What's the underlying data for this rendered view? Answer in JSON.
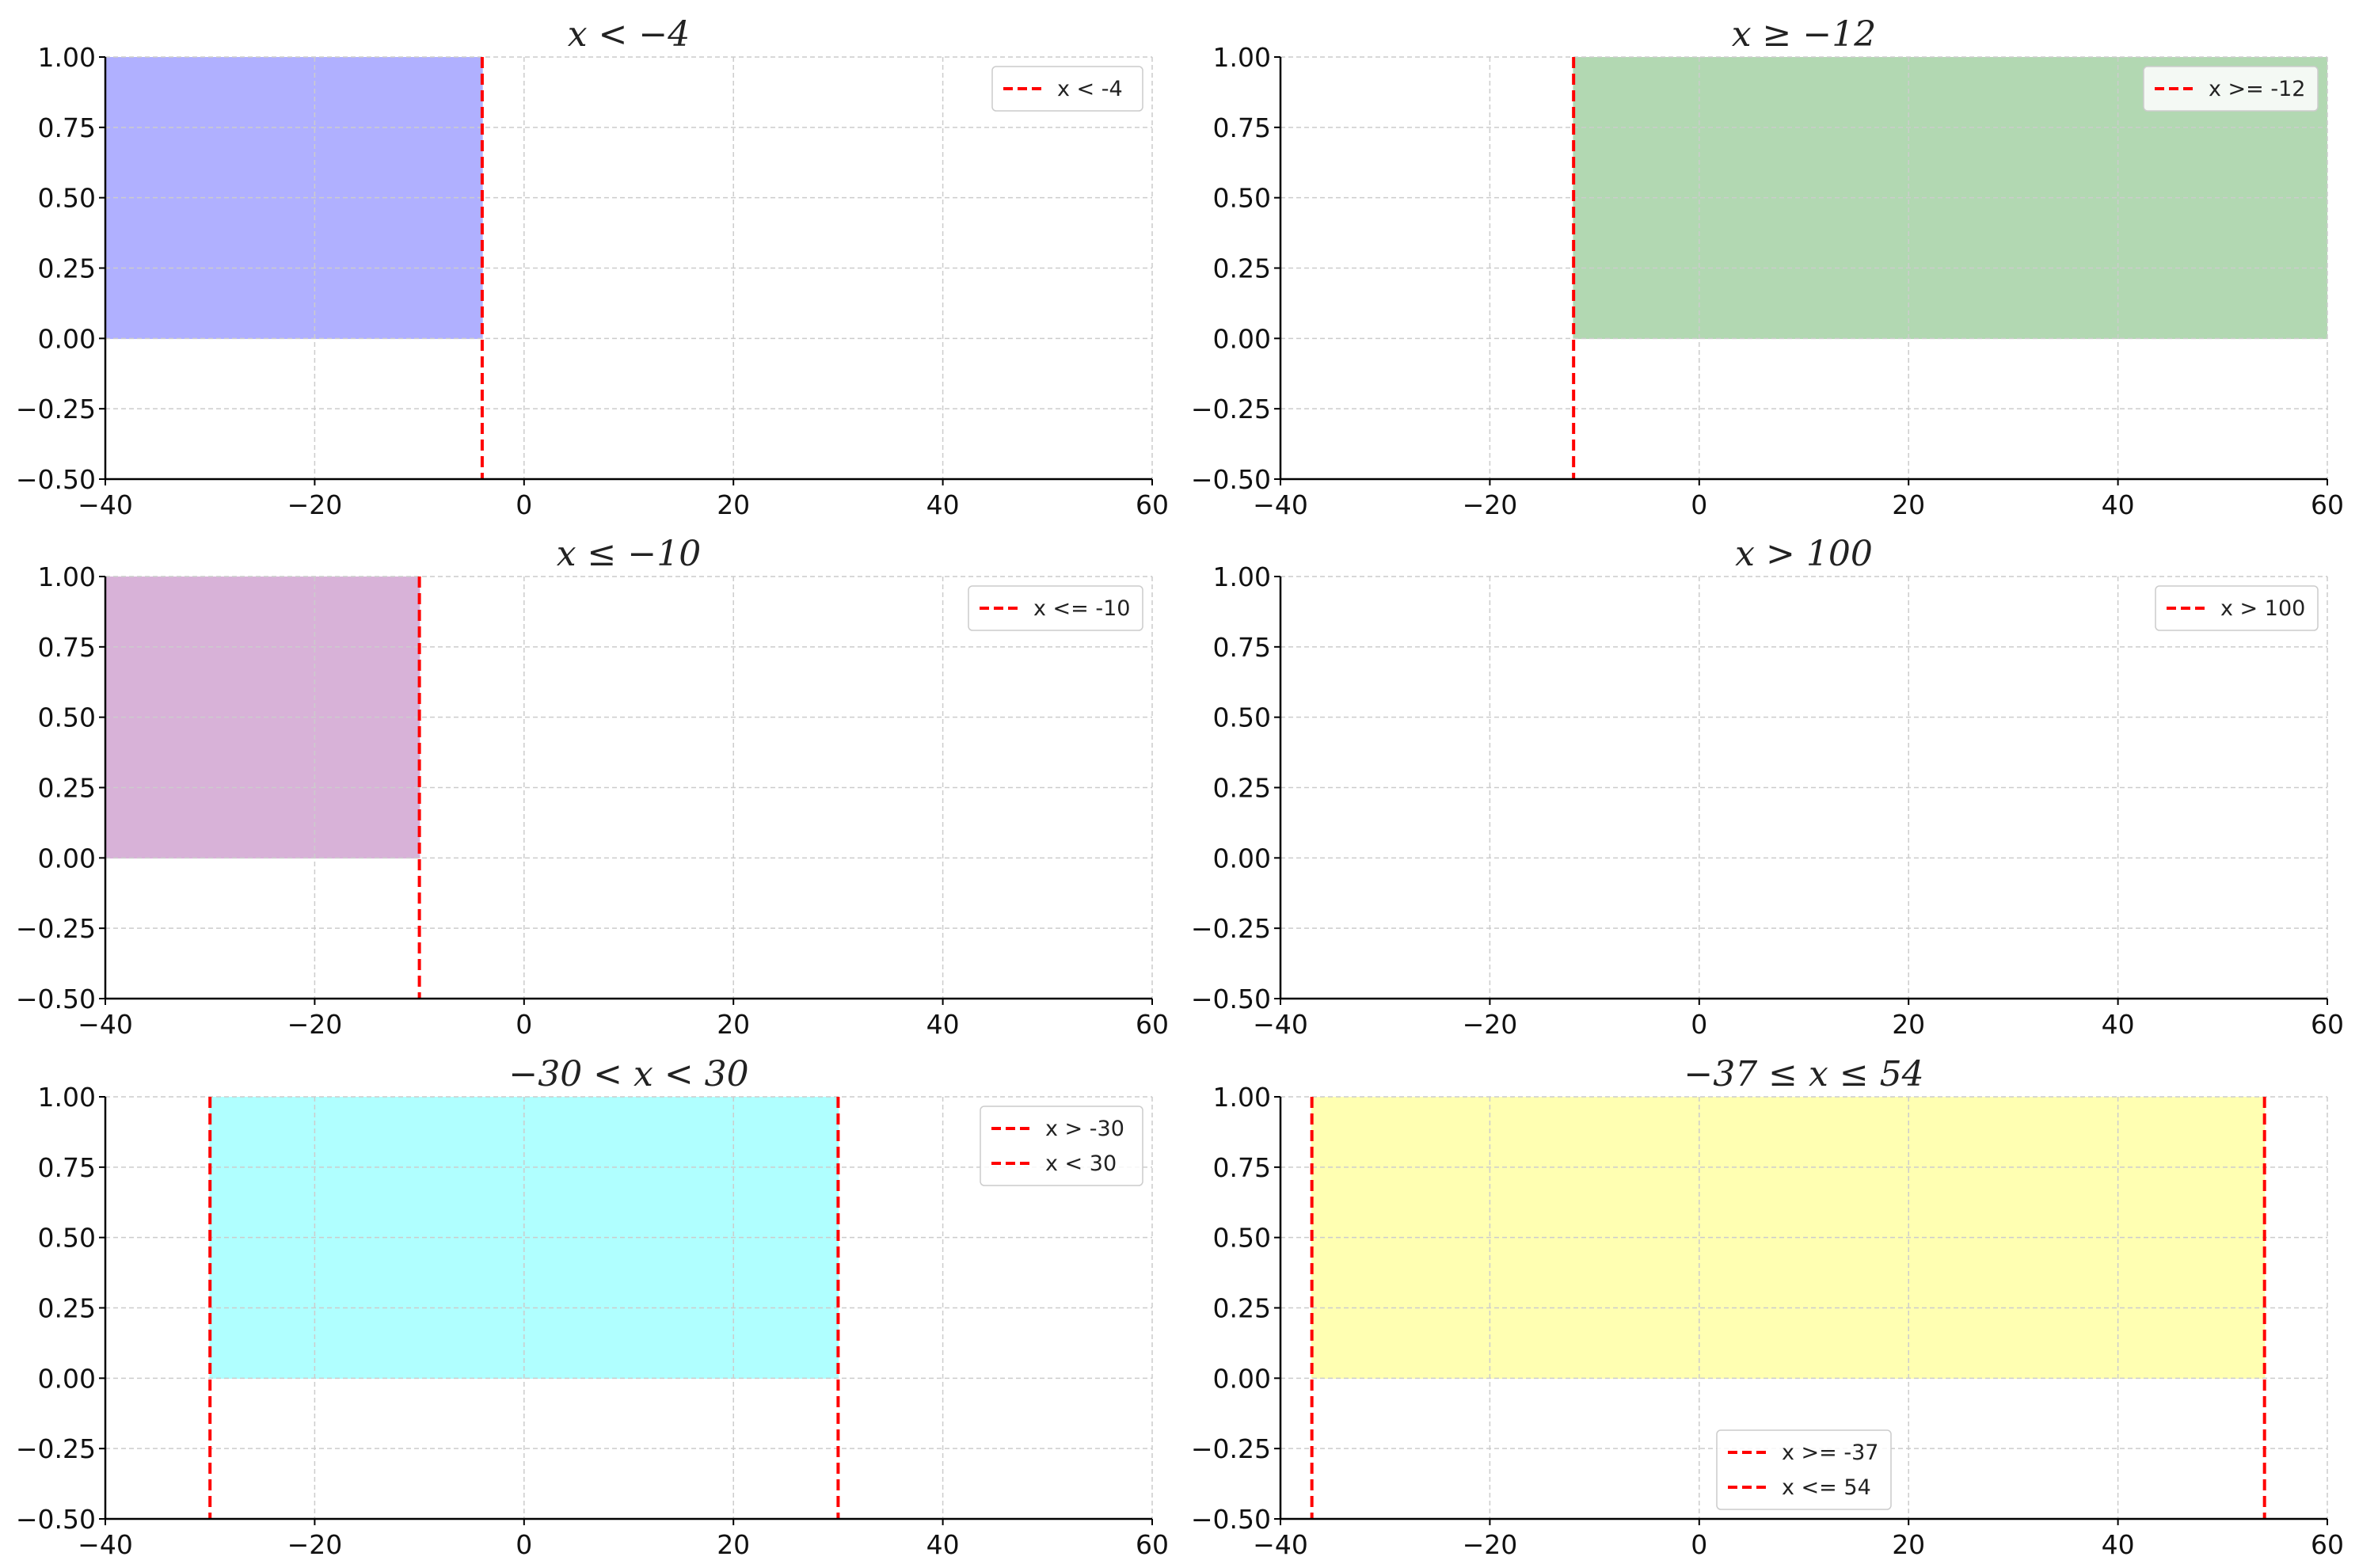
{
  "colors": {
    "boundary_line": "#ff0000",
    "grid": "#cccccc",
    "axis": "#000000",
    "legend_border": "#cccccc"
  },
  "chart_data": [
    {
      "type": "area",
      "title": "x < −4",
      "xlim": [
        -40,
        60
      ],
      "ylim": [
        -0.5,
        1.0
      ],
      "xticks": [
        -40,
        -20,
        0,
        20,
        40,
        60
      ],
      "yticks": [
        -0.5,
        -0.25,
        0.0,
        0.25,
        0.5,
        0.75,
        1.0
      ],
      "xtick_labels": [
        "−40",
        "−20",
        "0",
        "20",
        "40",
        "60"
      ],
      "ytick_labels": [
        "−0.50",
        "−0.25",
        "0.00",
        "0.25",
        "0.50",
        "0.75",
        "1.00"
      ],
      "grid": true,
      "fill": {
        "x_from": -40,
        "x_to": -4,
        "y_from": 0,
        "y_to": 1,
        "color": "#b0b0ff"
      },
      "boundaries": [
        {
          "x": -4,
          "label": "x < -4"
        }
      ],
      "legend_position": "upper right"
    },
    {
      "type": "area",
      "title": "x ≥ −12",
      "xlim": [
        -40,
        60
      ],
      "ylim": [
        -0.5,
        1.0
      ],
      "xticks": [
        -40,
        -20,
        0,
        20,
        40,
        60
      ],
      "yticks": [
        -0.5,
        -0.25,
        0.0,
        0.25,
        0.5,
        0.75,
        1.0
      ],
      "xtick_labels": [
        "−40",
        "−20",
        "0",
        "20",
        "40",
        "60"
      ],
      "ytick_labels": [
        "−0.50",
        "−0.25",
        "0.00",
        "0.25",
        "0.50",
        "0.75",
        "1.00"
      ],
      "grid": true,
      "fill": {
        "x_from": -12,
        "x_to": 60,
        "y_from": 0,
        "y_to": 1,
        "color": "#b2d8b2"
      },
      "boundaries": [
        {
          "x": -12,
          "label": "x >= -12"
        }
      ],
      "legend_position": "upper right"
    },
    {
      "type": "area",
      "title": "x ≤ −10",
      "xlim": [
        -40,
        60
      ],
      "ylim": [
        -0.5,
        1.0
      ],
      "xticks": [
        -40,
        -20,
        0,
        20,
        40,
        60
      ],
      "yticks": [
        -0.5,
        -0.25,
        0.0,
        0.25,
        0.5,
        0.75,
        1.0
      ],
      "xtick_labels": [
        "−40",
        "−20",
        "0",
        "20",
        "40",
        "60"
      ],
      "ytick_labels": [
        "−0.50",
        "−0.25",
        "0.00",
        "0.25",
        "0.50",
        "0.75",
        "1.00"
      ],
      "grid": true,
      "fill": {
        "x_from": -40,
        "x_to": -10,
        "y_from": 0,
        "y_to": 1,
        "color": "#d8b2d8"
      },
      "boundaries": [
        {
          "x": -10,
          "label": "x <= -10"
        }
      ],
      "legend_position": "upper right"
    },
    {
      "type": "area",
      "title": "x > 100",
      "xlim": [
        -40,
        60
      ],
      "ylim": [
        -0.5,
        1.0
      ],
      "xticks": [
        -40,
        -20,
        0,
        20,
        40,
        60
      ],
      "yticks": [
        -0.5,
        -0.25,
        0.0,
        0.25,
        0.5,
        0.75,
        1.0
      ],
      "xtick_labels": [
        "−40",
        "−20",
        "0",
        "20",
        "40",
        "60"
      ],
      "ytick_labels": [
        "−0.50",
        "−0.25",
        "0.00",
        "0.25",
        "0.50",
        "0.75",
        "1.00"
      ],
      "grid": true,
      "fill": null,
      "boundaries": [
        {
          "x": 100,
          "label": "x > 100"
        }
      ],
      "legend_position": "upper right"
    },
    {
      "type": "area",
      "title": "−30 < x < 30",
      "xlim": [
        -40,
        60
      ],
      "ylim": [
        -0.5,
        1.0
      ],
      "xticks": [
        -40,
        -20,
        0,
        20,
        40,
        60
      ],
      "yticks": [
        -0.5,
        -0.25,
        0.0,
        0.25,
        0.5,
        0.75,
        1.0
      ],
      "xtick_labels": [
        "−40",
        "−20",
        "0",
        "20",
        "40",
        "60"
      ],
      "ytick_labels": [
        "−0.50",
        "−0.25",
        "0.00",
        "0.25",
        "0.50",
        "0.75",
        "1.00"
      ],
      "grid": true,
      "fill": {
        "x_from": -30,
        "x_to": 30,
        "y_from": 0,
        "y_to": 1,
        "color": "#b0ffff"
      },
      "boundaries": [
        {
          "x": -30,
          "label": "x > -30"
        },
        {
          "x": 30,
          "label": "x < 30"
        }
      ],
      "legend_position": "upper right"
    },
    {
      "type": "area",
      "title": "−37 ≤ x ≤ 54",
      "xlim": [
        -40,
        60
      ],
      "ylim": [
        -0.5,
        1.0
      ],
      "xticks": [
        -40,
        -20,
        0,
        20,
        40,
        60
      ],
      "yticks": [
        -0.5,
        -0.25,
        0.0,
        0.25,
        0.5,
        0.75,
        1.0
      ],
      "xtick_labels": [
        "−40",
        "−20",
        "0",
        "20",
        "40",
        "60"
      ],
      "ytick_labels": [
        "−0.50",
        "−0.25",
        "0.00",
        "0.25",
        "0.50",
        "0.75",
        "1.00"
      ],
      "grid": true,
      "fill": {
        "x_from": -37,
        "x_to": 54,
        "y_from": 0,
        "y_to": 1,
        "color": "#ffffb2"
      },
      "boundaries": [
        {
          "x": -37,
          "label": "x >= -37"
        },
        {
          "x": 54,
          "label": "x <= 54"
        }
      ],
      "legend_position": "lower center"
    }
  ]
}
